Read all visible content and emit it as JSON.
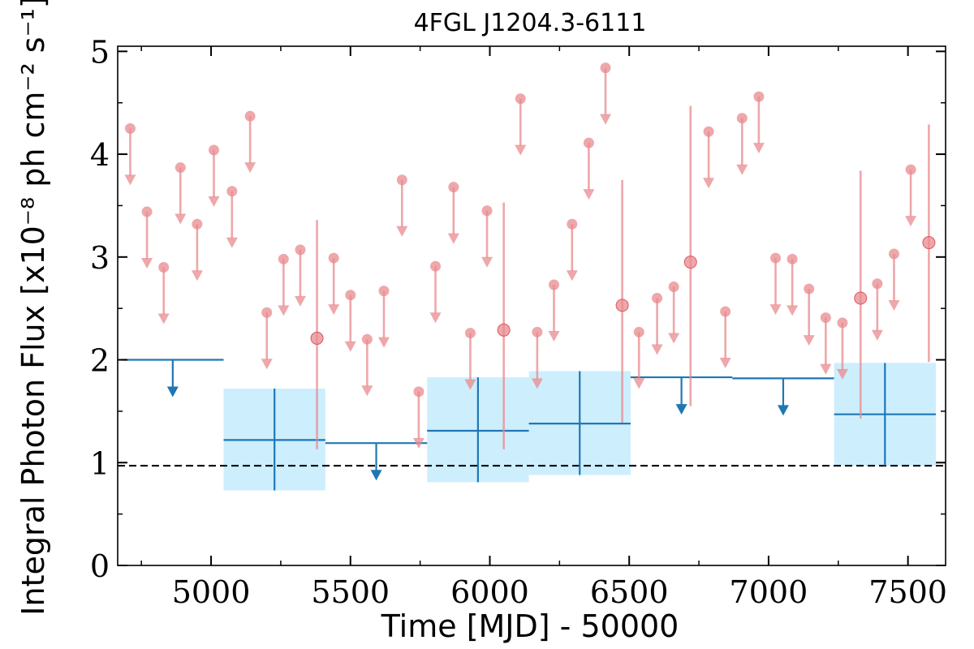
{
  "chart_data": {
    "type": "scatter",
    "title": "4FGL J1204.3-6111",
    "xlabel": "Time [MJD] - 50000",
    "ylabel": "Integral Photon Flux [x10⁻⁸ ph cm⁻² s⁻¹]",
    "xlim": [
      4665,
      7635
    ],
    "ylim": [
      0,
      5.05
    ],
    "xticks": [
      "5000",
      "5500",
      "6000",
      "6500",
      "7000",
      "7500"
    ],
    "xtick_values": [
      5000,
      5500,
      6000,
      6500,
      7000,
      7500
    ],
    "yticks": [
      "0",
      "1",
      "2",
      "3",
      "4",
      "5"
    ],
    "ytick_values": [
      0,
      1,
      2,
      3,
      4,
      5
    ],
    "reference_line": 0.97,
    "colors": {
      "short_bins": "#e8898d",
      "long_bins": "#1f77b4",
      "long_bins_band": "#cdeefd",
      "reference": "#000000"
    },
    "short_bins": [
      {
        "x": 4710,
        "y": 4.25,
        "ul": true
      },
      {
        "x": 4770,
        "y": 3.44,
        "ul": true
      },
      {
        "x": 4830,
        "y": 2.9,
        "ul": true
      },
      {
        "x": 4890,
        "y": 3.87,
        "ul": true
      },
      {
        "x": 4950,
        "y": 3.32,
        "ul": true
      },
      {
        "x": 5010,
        "y": 4.04,
        "ul": true
      },
      {
        "x": 5075,
        "y": 3.64,
        "ul": true
      },
      {
        "x": 5140,
        "y": 4.37,
        "ul": true
      },
      {
        "x": 5200,
        "y": 2.46,
        "ul": true
      },
      {
        "x": 5260,
        "y": 2.98,
        "ul": true
      },
      {
        "x": 5320,
        "y": 3.07,
        "ul": true
      },
      {
        "x": 5380,
        "y": 2.21,
        "ul": false,
        "lo": 1.13,
        "hi": 3.36
      },
      {
        "x": 5440,
        "y": 2.99,
        "ul": true
      },
      {
        "x": 5500,
        "y": 2.63,
        "ul": true
      },
      {
        "x": 5560,
        "y": 2.2,
        "ul": true
      },
      {
        "x": 5620,
        "y": 2.67,
        "ul": true
      },
      {
        "x": 5685,
        "y": 3.75,
        "ul": true
      },
      {
        "x": 5745,
        "y": 1.69,
        "ul": true
      },
      {
        "x": 5805,
        "y": 2.91,
        "ul": true
      },
      {
        "x": 5870,
        "y": 3.68,
        "ul": true
      },
      {
        "x": 5930,
        "y": 2.26,
        "ul": true
      },
      {
        "x": 5990,
        "y": 3.45,
        "ul": true
      },
      {
        "x": 6050,
        "y": 2.29,
        "ul": false,
        "lo": 1.13,
        "hi": 3.53
      },
      {
        "x": 6110,
        "y": 4.54,
        "ul": true
      },
      {
        "x": 6170,
        "y": 2.27,
        "ul": true
      },
      {
        "x": 6230,
        "y": 2.73,
        "ul": true
      },
      {
        "x": 6295,
        "y": 3.32,
        "ul": true
      },
      {
        "x": 6355,
        "y": 4.11,
        "ul": true
      },
      {
        "x": 6415,
        "y": 4.84,
        "ul": true
      },
      {
        "x": 6475,
        "y": 2.53,
        "ul": false,
        "lo": 1.39,
        "hi": 3.75
      },
      {
        "x": 6535,
        "y": 2.27,
        "ul": true
      },
      {
        "x": 6600,
        "y": 2.6,
        "ul": true
      },
      {
        "x": 6660,
        "y": 2.71,
        "ul": true
      },
      {
        "x": 6720,
        "y": 2.95,
        "ul": false,
        "lo": 1.55,
        "hi": 4.47
      },
      {
        "x": 6785,
        "y": 4.22,
        "ul": true
      },
      {
        "x": 6845,
        "y": 2.47,
        "ul": true
      },
      {
        "x": 6905,
        "y": 4.35,
        "ul": true
      },
      {
        "x": 6965,
        "y": 4.56,
        "ul": true
      },
      {
        "x": 7025,
        "y": 2.99,
        "ul": true
      },
      {
        "x": 7085,
        "y": 2.98,
        "ul": true
      },
      {
        "x": 7145,
        "y": 2.69,
        "ul": true
      },
      {
        "x": 7205,
        "y": 2.41,
        "ul": true
      },
      {
        "x": 7265,
        "y": 2.36,
        "ul": true
      },
      {
        "x": 7330,
        "y": 2.6,
        "ul": false,
        "lo": 1.43,
        "hi": 3.84
      },
      {
        "x": 7390,
        "y": 2.74,
        "ul": true
      },
      {
        "x": 7450,
        "y": 3.03,
        "ul": true
      },
      {
        "x": 7510,
        "y": 3.85,
        "ul": true
      },
      {
        "x": 7575,
        "y": 3.14,
        "ul": false,
        "lo": 1.98,
        "hi": 4.29
      }
    ],
    "long_bins": [
      {
        "x0": 4680,
        "x1": 5045,
        "y": 2.0,
        "ul": true
      },
      {
        "x0": 5045,
        "x1": 5410,
        "y": 1.22,
        "ul": false,
        "lo": 0.73,
        "hi": 1.72
      },
      {
        "x0": 5410,
        "x1": 5775,
        "y": 1.19,
        "ul": true
      },
      {
        "x0": 5775,
        "x1": 6140,
        "y": 1.31,
        "ul": false,
        "lo": 0.81,
        "hi": 1.83
      },
      {
        "x0": 6140,
        "x1": 6505,
        "y": 1.38,
        "ul": false,
        "lo": 0.88,
        "hi": 1.89
      },
      {
        "x0": 6505,
        "x1": 6870,
        "y": 1.83,
        "ul": true
      },
      {
        "x0": 6870,
        "x1": 7235,
        "y": 1.82,
        "ul": true
      },
      {
        "x0": 7235,
        "x1": 7600,
        "y": 1.47,
        "ul": false,
        "lo": 0.97,
        "hi": 1.97
      }
    ]
  }
}
